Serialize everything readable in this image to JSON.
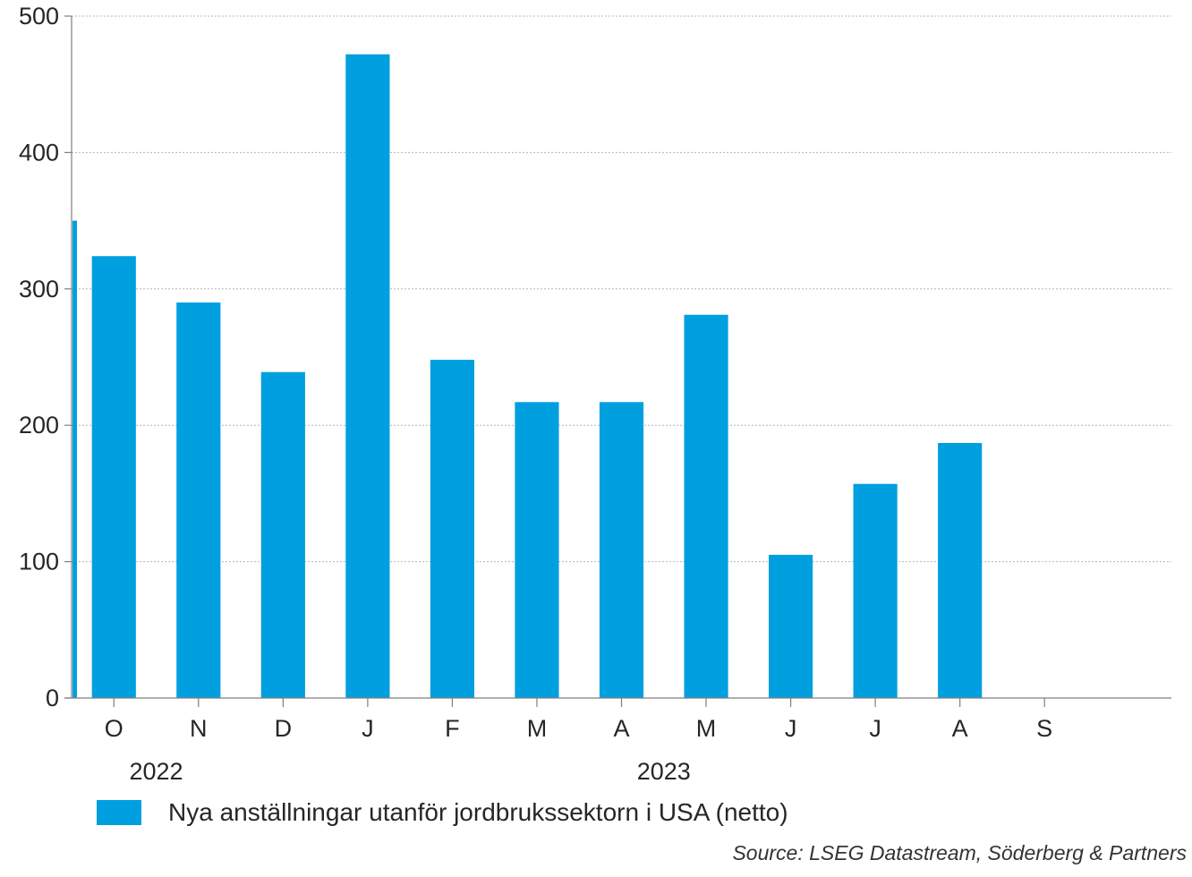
{
  "chart_data": {
    "type": "bar",
    "categories": [
      "",
      "O",
      "N",
      "D",
      "J",
      "F",
      "M",
      "A",
      "M",
      "J",
      "J",
      "A",
      "S"
    ],
    "values": [
      350,
      324,
      290,
      239,
      472,
      248,
      217,
      217,
      281,
      105,
      157,
      187,
      null
    ],
    "ylim": [
      0,
      500
    ],
    "yticks": [
      0,
      100,
      200,
      300,
      400,
      500
    ],
    "grid": true,
    "year_labels": [
      {
        "label": "2022",
        "category_index": 2
      },
      {
        "label": "2023",
        "category_index": 8
      }
    ],
    "legend": "Nya anställningar utanför jordbrukssektorn i USA (netto)",
    "legend_position": "bottom-left",
    "bar_color": "#009fe0"
  },
  "source": "Source: LSEG Datastream, Söderberg & Partners"
}
